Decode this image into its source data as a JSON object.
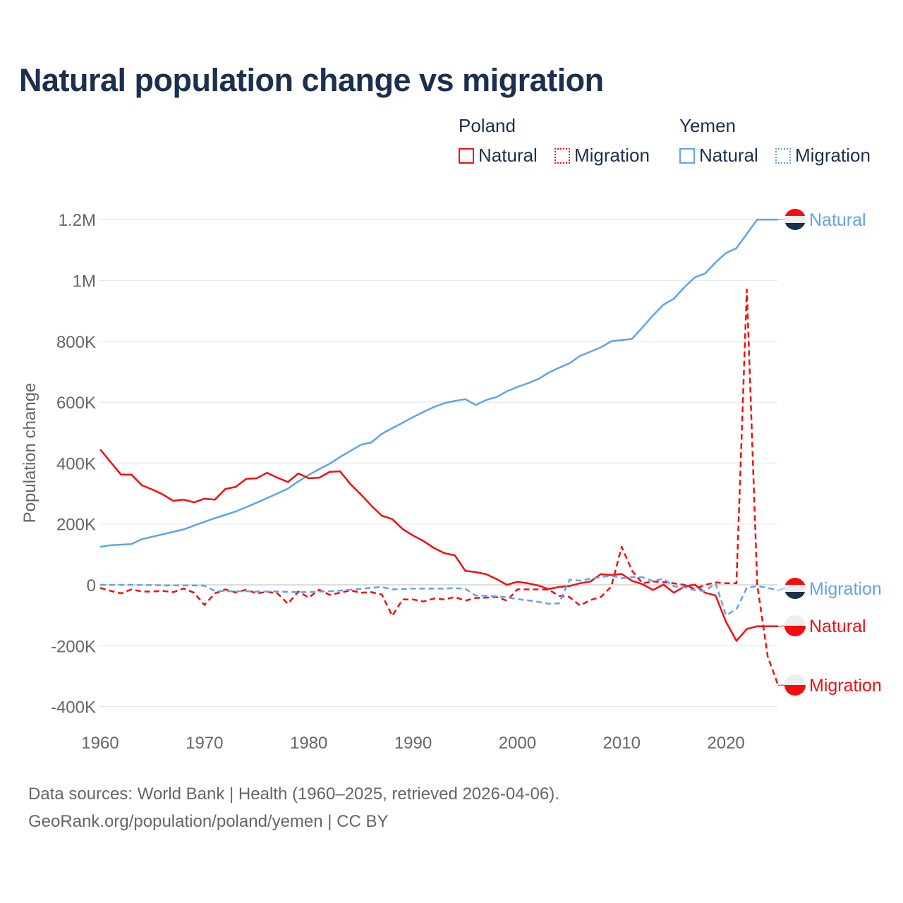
{
  "chart_data": {
    "type": "line",
    "title": "Natural population change vs migration",
    "ylabel": "Population change",
    "xlabel": "",
    "ylim": [
      -400000,
      1200000
    ],
    "xlim": [
      1960,
      2025
    ],
    "x_ticks": [
      "1960",
      "1970",
      "1980",
      "1990",
      "2000",
      "2010",
      "2020"
    ],
    "y_ticks": [
      {
        "v": 1200000,
        "label": "1.2M"
      },
      {
        "v": 1000000,
        "label": "1M"
      },
      {
        "v": 800000,
        "label": "800K"
      },
      {
        "v": 600000,
        "label": "600K"
      },
      {
        "v": 400000,
        "label": "400K"
      },
      {
        "v": 200000,
        "label": "200K"
      },
      {
        "v": 0,
        "label": "0"
      },
      {
        "v": -200000,
        "label": "-200K"
      },
      {
        "v": -400000,
        "label": "-400K"
      }
    ],
    "grid": true,
    "legend_position": "top-right",
    "x_start": 1960,
    "series": [
      {
        "country": "Poland",
        "name": "Natural",
        "color": "#f40d0d",
        "dash": false,
        "end_label": "Natural",
        "values": [
          445000,
          403000,
          362000,
          362000,
          327000,
          313000,
          297000,
          276000,
          280000,
          271000,
          283000,
          280000,
          315000,
          322000,
          348000,
          350000,
          368000,
          352000,
          338000,
          366000,
          350000,
          352000,
          371000,
          373000,
          331000,
          297000,
          260000,
          227000,
          216000,
          183000,
          162000,
          144000,
          121000,
          104000,
          97000,
          46000,
          42000,
          35000,
          19000,
          0,
          10000,
          5000,
          -2000,
          -14000,
          -7000,
          -4000,
          5000,
          11000,
          35000,
          32000,
          36000,
          13000,
          2000,
          -17000,
          1000,
          -26000,
          -6000,
          1000,
          -26000,
          -35000,
          -122000,
          -184000,
          -145000,
          -136000,
          -136000,
          -136000
        ]
      },
      {
        "country": "Poland",
        "name": "Migration",
        "color": "#f40d0d",
        "dash": true,
        "end_label": "Migration",
        "values": [
          -10000,
          -20000,
          -28000,
          -15000,
          -22000,
          -22000,
          -20000,
          -24000,
          -12000,
          -26000,
          -66000,
          -28000,
          -15000,
          -25000,
          -16000,
          -28000,
          -23000,
          -28000,
          -62000,
          -22000,
          -42000,
          -16000,
          -33000,
          -26000,
          -18000,
          -26000,
          -24000,
          -32000,
          -102000,
          -48000,
          -48000,
          -55000,
          -45000,
          -48000,
          -40000,
          -52000,
          -43000,
          -42000,
          -40000,
          -52000,
          -15000,
          -15000,
          -15000,
          -16000,
          -36000,
          -40000,
          -68000,
          -50000,
          -40000,
          -6000,
          125000,
          46000,
          5000,
          11000,
          9000,
          5000,
          0,
          -14000,
          0,
          8000,
          5000,
          5000,
          970000,
          0,
          -235000,
          -330000
        ]
      },
      {
        "country": "Yemen",
        "name": "Natural",
        "color": "#5fa4e8",
        "dash": false,
        "end_label": "Natural",
        "values": [
          125000,
          130000,
          132000,
          134000,
          150000,
          158000,
          166000,
          174000,
          182000,
          195000,
          207000,
          219000,
          230000,
          241000,
          255000,
          270000,
          285000,
          300000,
          316000,
          340000,
          361000,
          380000,
          398000,
          420000,
          440000,
          460000,
          468000,
          496000,
          515000,
          532000,
          551000,
          568000,
          584000,
          597000,
          604000,
          610000,
          591000,
          607000,
          617000,
          636000,
          650000,
          662000,
          676000,
          697000,
          713000,
          728000,
          752000,
          766000,
          780000,
          800000,
          804000,
          808000,
          846000,
          885000,
          920000,
          940000,
          977000,
          1010000,
          1023000,
          1059000,
          1090000,
          1106000,
          1153000,
          1200000,
          1200000,
          1200000
        ]
      },
      {
        "country": "Yemen",
        "name": "Migration",
        "color": "#5fa4e8",
        "dash": true,
        "end_label": "Migration",
        "values": [
          0,
          0,
          0,
          0,
          -1000,
          -1000,
          -2000,
          -2000,
          -2000,
          -2000,
          -3000,
          -20000,
          -21000,
          -21000,
          -21000,
          -22000,
          -22000,
          -22000,
          -23000,
          -24000,
          -24000,
          -22000,
          -21000,
          -19000,
          -16000,
          -13000,
          -10000,
          -7000,
          -15000,
          -14000,
          -12000,
          -12000,
          -12000,
          -12000,
          -11000,
          -13000,
          -35000,
          -36000,
          -38000,
          -41000,
          -47000,
          -51000,
          -56000,
          -62000,
          -61000,
          17000,
          14000,
          20000,
          25000,
          30000,
          22000,
          25000,
          25000,
          12000,
          20000,
          -5000,
          -8000,
          -18000,
          -20000,
          5000,
          -100000,
          -80000,
          -10000,
          -4000,
          -10000,
          -18000
        ]
      }
    ]
  },
  "legend": {
    "groups": [
      {
        "country": "Poland",
        "natural": "Natural",
        "migration": "Migration",
        "color": "#f40d0d"
      },
      {
        "country": "Yemen",
        "natural": "Natural",
        "migration": "Migration",
        "color": "#5fa4e8"
      }
    ]
  },
  "footer": {
    "line1": "Data sources: World Bank | Health (1960–2025, retrieved 2026-04-06).",
    "line2": "GeoRank.org/population/poland/yemen | CC BY"
  },
  "colors": {
    "title": "#1b2f4e",
    "poland": "#f40d0d",
    "yemen": "#5fa4e8",
    "grid": "#e6e6e6",
    "axis_text": "#666666"
  }
}
